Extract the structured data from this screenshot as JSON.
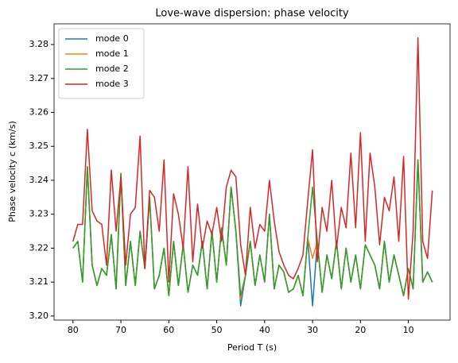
{
  "chart_data": {
    "type": "line",
    "title": "Love-wave dispersion: phase velocity",
    "xlabel": "Period T (s)",
    "ylabel": "Phase velocity c (km/s)",
    "x": [
      80,
      79,
      78,
      77,
      76,
      75,
      74,
      73,
      72,
      71,
      70,
      69,
      68,
      67,
      66,
      65,
      64,
      63,
      62,
      61,
      60,
      59,
      58,
      57,
      56,
      55,
      54,
      53,
      52,
      51,
      50,
      49,
      48,
      47,
      46,
      45,
      44,
      43,
      42,
      41,
      40,
      39,
      38,
      37,
      36,
      35,
      34,
      33,
      32,
      31,
      30,
      29,
      28,
      27,
      26,
      25,
      24,
      23,
      22,
      21,
      20,
      19,
      18,
      17,
      16,
      15,
      14,
      13,
      12,
      11,
      10,
      9,
      8,
      7,
      6,
      5
    ],
    "series": [
      {
        "name": "mode 0",
        "color": "#1f77b4",
        "values": [
          3.22,
          3.222,
          3.21,
          3.244,
          3.215,
          3.209,
          3.214,
          3.212,
          3.224,
          3.208,
          3.242,
          3.209,
          3.222,
          3.209,
          3.225,
          3.214,
          3.235,
          3.208,
          3.212,
          3.22,
          3.206,
          3.222,
          3.209,
          3.221,
          3.207,
          3.215,
          3.212,
          3.222,
          3.208,
          3.225,
          3.21,
          3.226,
          3.215,
          3.238,
          3.225,
          3.203,
          3.212,
          3.222,
          3.209,
          3.218,
          3.21,
          3.23,
          3.208,
          3.215,
          3.213,
          3.207,
          3.208,
          3.212,
          3.206,
          3.223,
          3.203,
          3.222,
          3.207,
          3.218,
          3.211,
          3.222,
          3.208,
          3.22,
          3.21,
          3.218,
          3.208,
          3.221,
          3.218,
          3.215,
          3.208,
          3.222,
          3.21,
          3.218,
          3.212,
          3.206,
          3.214,
          3.208,
          3.246,
          3.21,
          3.213,
          3.21
        ]
      },
      {
        "name": "mode 1",
        "color": "#ff7f0e",
        "values": [
          3.22,
          3.222,
          3.21,
          3.244,
          3.215,
          3.209,
          3.214,
          3.212,
          3.224,
          3.208,
          3.242,
          3.209,
          3.222,
          3.209,
          3.225,
          3.214,
          3.235,
          3.208,
          3.212,
          3.22,
          3.206,
          3.222,
          3.209,
          3.221,
          3.207,
          3.215,
          3.212,
          3.222,
          3.208,
          3.225,
          3.21,
          3.226,
          3.215,
          3.238,
          3.225,
          3.205,
          3.212,
          3.222,
          3.209,
          3.218,
          3.21,
          3.23,
          3.208,
          3.215,
          3.213,
          3.207,
          3.208,
          3.212,
          3.206,
          3.223,
          3.217,
          3.222,
          3.207,
          3.218,
          3.211,
          3.222,
          3.208,
          3.22,
          3.21,
          3.218,
          3.208,
          3.221,
          3.218,
          3.215,
          3.208,
          3.222,
          3.21,
          3.218,
          3.212,
          3.206,
          3.214,
          3.208,
          3.246,
          3.21,
          3.213,
          3.21
        ]
      },
      {
        "name": "mode 2",
        "color": "#2ca02c",
        "values": [
          3.22,
          3.222,
          3.21,
          3.244,
          3.215,
          3.209,
          3.214,
          3.212,
          3.224,
          3.208,
          3.242,
          3.209,
          3.222,
          3.209,
          3.225,
          3.214,
          3.235,
          3.208,
          3.212,
          3.22,
          3.206,
          3.222,
          3.209,
          3.221,
          3.207,
          3.215,
          3.212,
          3.222,
          3.208,
          3.225,
          3.21,
          3.226,
          3.215,
          3.238,
          3.225,
          3.206,
          3.212,
          3.222,
          3.209,
          3.218,
          3.21,
          3.23,
          3.208,
          3.215,
          3.213,
          3.207,
          3.208,
          3.212,
          3.206,
          3.223,
          3.238,
          3.222,
          3.207,
          3.218,
          3.211,
          3.222,
          3.208,
          3.22,
          3.21,
          3.218,
          3.208,
          3.221,
          3.218,
          3.215,
          3.208,
          3.222,
          3.21,
          3.218,
          3.212,
          3.206,
          3.214,
          3.208,
          3.246,
          3.21,
          3.213,
          3.21
        ]
      },
      {
        "name": "mode 3",
        "color": "#d62728",
        "values": [
          3.222,
          3.227,
          3.227,
          3.255,
          3.231,
          3.228,
          3.227,
          3.215,
          3.243,
          3.225,
          3.241,
          3.215,
          3.23,
          3.232,
          3.253,
          3.214,
          3.237,
          3.235,
          3.225,
          3.246,
          3.21,
          3.236,
          3.23,
          3.22,
          3.244,
          3.216,
          3.233,
          3.22,
          3.228,
          3.224,
          3.232,
          3.222,
          3.238,
          3.243,
          3.241,
          3.221,
          3.212,
          3.232,
          3.22,
          3.227,
          3.225,
          3.24,
          3.228,
          3.219,
          3.215,
          3.212,
          3.211,
          3.214,
          3.218,
          3.234,
          3.249,
          3.216,
          3.232,
          3.225,
          3.24,
          3.22,
          3.232,
          3.226,
          3.248,
          3.226,
          3.254,
          3.222,
          3.248,
          3.238,
          3.221,
          3.235,
          3.231,
          3.241,
          3.222,
          3.247,
          3.205,
          3.225,
          3.282,
          3.222,
          3.217,
          3.237
        ]
      }
    ],
    "xlim": [
      83.95,
      1.3
    ],
    "ylim": [
      3.1988,
      3.2861
    ],
    "xticks": [
      80,
      70,
      60,
      50,
      40,
      30,
      20,
      10
    ],
    "yticks": [
      {
        "value": 3.2,
        "label": "3.20"
      },
      3.21,
      3.22,
      3.23,
      3.24,
      3.25,
      3.26,
      3.27,
      3.28
    ],
    "legend": "upper left",
    "grid": false
  }
}
